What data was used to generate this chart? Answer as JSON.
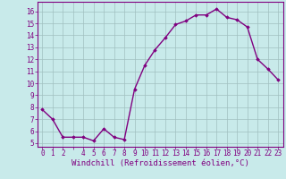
{
  "x": [
    0,
    1,
    2,
    3,
    4,
    5,
    6,
    7,
    8,
    9,
    10,
    11,
    12,
    13,
    14,
    15,
    16,
    17,
    18,
    19,
    20,
    21,
    22,
    23
  ],
  "y": [
    7.8,
    7.0,
    5.5,
    5.5,
    5.5,
    5.2,
    6.2,
    5.5,
    5.3,
    9.5,
    11.5,
    12.8,
    13.8,
    14.9,
    15.2,
    15.7,
    15.7,
    16.2,
    15.5,
    15.3,
    14.7,
    12.0,
    11.2,
    10.3
  ],
  "line_color": "#800080",
  "marker": "D",
  "marker_size": 1.8,
  "bg_color": "#c8eaea",
  "grid_color": "#a0c0c0",
  "xlabel": "Windchill (Refroidissement éolien,°C)",
  "xlabel_color": "#800080",
  "xlabel_fontsize": 6.5,
  "ylabel_ticks": [
    5,
    6,
    7,
    8,
    9,
    10,
    11,
    12,
    13,
    14,
    15,
    16
  ],
  "xtick_labels": [
    "0",
    "1",
    "2",
    "",
    "4",
    "5",
    "6",
    "7",
    "8",
    "9",
    "10",
    "11",
    "12",
    "13",
    "14",
    "15",
    "16",
    "17",
    "18",
    "19",
    "20",
    "21",
    "22",
    "23"
  ],
  "ylim": [
    4.7,
    16.8
  ],
  "xlim": [
    -0.5,
    23.5
  ],
  "tick_color": "#800080",
  "tick_fontsize": 5.5,
  "line_width": 1.0
}
